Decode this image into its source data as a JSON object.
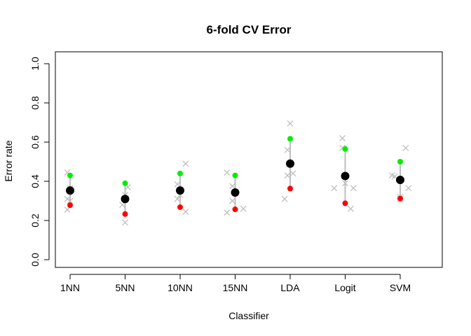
{
  "chart_data": {
    "type": "scatter",
    "title": "6-fold CV Error",
    "xlabel": "Classifier",
    "ylabel": "Error rate",
    "categories": [
      "1NN",
      "5NN",
      "10NN",
      "15NN",
      "LDA",
      "Logit",
      "SVM"
    ],
    "ylim": [
      0.0,
      1.0
    ],
    "yticks": [
      "0.0",
      "0.2",
      "0.4",
      "0.6",
      "0.8",
      "1.0"
    ],
    "grid": false,
    "legend": "none",
    "colors": {
      "fold": "#bebebe",
      "range": "#bebebe",
      "mean": "#000000",
      "max": "#00ee00",
      "min": "#ff0000"
    },
    "series": [
      {
        "category": "1NN",
        "mean": 0.353,
        "max": 0.43,
        "min": 0.278,
        "folds": [
          {
            "dx": -0.05,
            "y": 0.445
          },
          {
            "dx": 0.0,
            "y": 0.365
          },
          {
            "dx": -0.05,
            "y": 0.31
          },
          {
            "dx": 0.0,
            "y": 0.3
          },
          {
            "dx": -0.05,
            "y": 0.255
          }
        ]
      },
      {
        "category": "5NN",
        "mean": 0.31,
        "max": 0.39,
        "min": 0.233,
        "folds": [
          {
            "dx": 0.05,
            "y": 0.37
          },
          {
            "dx": 0.0,
            "y": 0.33
          },
          {
            "dx": -0.05,
            "y": 0.28
          },
          {
            "dx": 0.0,
            "y": 0.19
          }
        ]
      },
      {
        "category": "10NN",
        "mean": 0.353,
        "max": 0.44,
        "min": 0.268,
        "folds": [
          {
            "dx": 0.1,
            "y": 0.49
          },
          {
            "dx": -0.05,
            "y": 0.385
          },
          {
            "dx": 0.0,
            "y": 0.33
          },
          {
            "dx": -0.05,
            "y": 0.31
          },
          {
            "dx": 0.1,
            "y": 0.245
          }
        ]
      },
      {
        "category": "15NN",
        "mean": 0.343,
        "max": 0.43,
        "min": 0.257,
        "folds": [
          {
            "dx": -0.15,
            "y": 0.445
          },
          {
            "dx": -0.05,
            "y": 0.375
          },
          {
            "dx": -0.05,
            "y": 0.3
          },
          {
            "dx": 0.15,
            "y": 0.26
          },
          {
            "dx": -0.15,
            "y": 0.24
          }
        ]
      },
      {
        "category": "LDA",
        "mean": 0.49,
        "max": 0.617,
        "min": 0.363,
        "folds": [
          {
            "dx": 0.0,
            "y": 0.695
          },
          {
            "dx": -0.05,
            "y": 0.56
          },
          {
            "dx": 0.05,
            "y": 0.44
          },
          {
            "dx": -0.05,
            "y": 0.43
          },
          {
            "dx": -0.1,
            "y": 0.31
          }
        ]
      },
      {
        "category": "Logit",
        "mean": 0.427,
        "max": 0.565,
        "min": 0.288,
        "folds": [
          {
            "dx": -0.05,
            "y": 0.62
          },
          {
            "dx": -0.05,
            "y": 0.57
          },
          {
            "dx": 0.0,
            "y": 0.39
          },
          {
            "dx": -0.2,
            "y": 0.365
          },
          {
            "dx": 0.15,
            "y": 0.365
          },
          {
            "dx": 0.1,
            "y": 0.26
          }
        ]
      },
      {
        "category": "SVM",
        "mean": 0.407,
        "max": 0.5,
        "min": 0.312,
        "folds": [
          {
            "dx": 0.1,
            "y": 0.57
          },
          {
            "dx": -0.15,
            "y": 0.43
          },
          {
            "dx": -0.1,
            "y": 0.425
          },
          {
            "dx": 0.15,
            "y": 0.365
          },
          {
            "dx": 0.0,
            "y": 0.32
          },
          {
            "dx": 0.0,
            "y": 0.31
          }
        ]
      }
    ]
  }
}
